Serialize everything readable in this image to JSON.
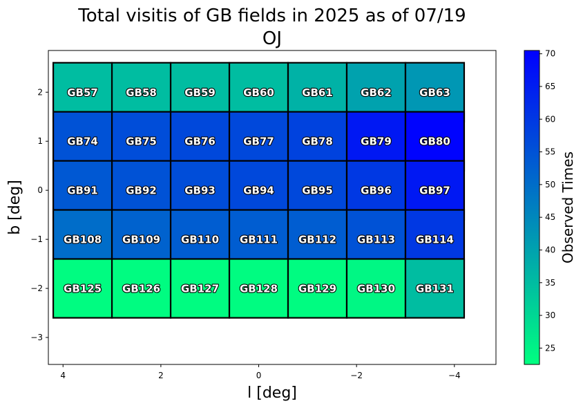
{
  "chart_data": {
    "type": "heatmap",
    "title": "Total visitis of GB fields in 2025 as of 07/19",
    "subtitle": "OJ",
    "xlabel": "l [deg]",
    "ylabel": "b [deg]",
    "colorbar_label": "Observed Times",
    "xlim": [
      4.3,
      -4.85
    ],
    "ylim": [
      -3.55,
      2.85
    ],
    "x_ticks": [
      4,
      2,
      0,
      -2,
      -4
    ],
    "x_tick_labels": [
      "4",
      "2",
      "0",
      "−2",
      "−4"
    ],
    "y_ticks": [
      2,
      1,
      0,
      -1,
      -2,
      -3
    ],
    "y_tick_labels": [
      "2",
      "1",
      "0",
      "−1",
      "−2",
      "−3"
    ],
    "colorbar_range": [
      22.5,
      70.5
    ],
    "colorbar_ticks": [
      25,
      30,
      35,
      40,
      45,
      50,
      55,
      60,
      65,
      70
    ],
    "colormap": {
      "low": "#00ff80",
      "high": "#0000ff"
    },
    "grid": false,
    "field_columns_l": [
      3.6,
      2.4,
      1.2,
      0.0,
      -1.2,
      -2.4,
      -3.6
    ],
    "field_rows_b": [
      2,
      1,
      0,
      -1,
      -2
    ],
    "field_size": {
      "dl": 1.2,
      "db": 1.2
    },
    "fields": [
      [
        {
          "name": "GB57",
          "value": 35
        },
        {
          "name": "GB58",
          "value": 35
        },
        {
          "name": "GB59",
          "value": 35
        },
        {
          "name": "GB60",
          "value": 35
        },
        {
          "name": "GB61",
          "value": 37
        },
        {
          "name": "GB62",
          "value": 40
        },
        {
          "name": "GB63",
          "value": 42
        }
      ],
      [
        {
          "name": "GB74",
          "value": 55
        },
        {
          "name": "GB75",
          "value": 56
        },
        {
          "name": "GB76",
          "value": 57
        },
        {
          "name": "GB77",
          "value": 57
        },
        {
          "name": "GB78",
          "value": 58
        },
        {
          "name": "GB79",
          "value": 66
        },
        {
          "name": "GB80",
          "value": 70
        }
      ],
      [
        {
          "name": "GB91",
          "value": 54
        },
        {
          "name": "GB92",
          "value": 55
        },
        {
          "name": "GB93",
          "value": 56
        },
        {
          "name": "GB94",
          "value": 57
        },
        {
          "name": "GB95",
          "value": 57
        },
        {
          "name": "GB96",
          "value": 60
        },
        {
          "name": "GB97",
          "value": 66
        }
      ],
      [
        {
          "name": "GB108",
          "value": 50
        },
        {
          "name": "GB109",
          "value": 52
        },
        {
          "name": "GB110",
          "value": 53
        },
        {
          "name": "GB111",
          "value": 53
        },
        {
          "name": "GB112",
          "value": 53
        },
        {
          "name": "GB113",
          "value": 55
        },
        {
          "name": "GB114",
          "value": 60
        }
      ],
      [
        {
          "name": "GB125",
          "value": 23
        },
        {
          "name": "GB126",
          "value": 23
        },
        {
          "name": "GB127",
          "value": 23
        },
        {
          "name": "GB128",
          "value": 23
        },
        {
          "name": "GB129",
          "value": 23
        },
        {
          "name": "GB130",
          "value": 24
        },
        {
          "name": "GB131",
          "value": 35
        }
      ]
    ]
  }
}
